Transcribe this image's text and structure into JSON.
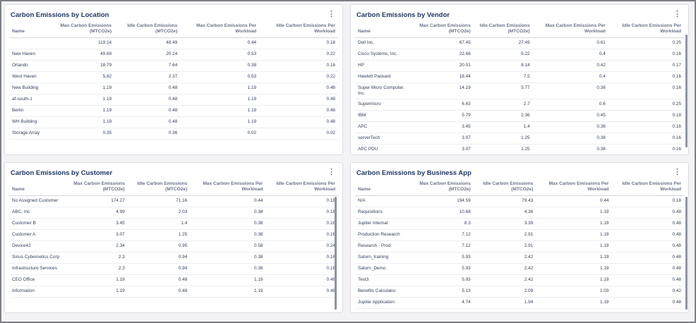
{
  "location": {
    "title": "Carbon Emissions by Location",
    "headers": [
      "Name",
      "Max Carbon Emissions (MTCO2e)",
      "Idle Carbon Emissions (MTCO2e)",
      "Max Carbon Emissions Per Workload",
      "Idle Carbon Emissions Per Workload"
    ],
    "rows": [
      [
        "",
        "119.14",
        "48.49",
        "0.44",
        "0.18"
      ],
      [
        "New Haven",
        "49.69",
        "20.24",
        "0.53",
        "0.22"
      ],
      [
        "Orlando",
        "18.79",
        "7.64",
        "0.38",
        "0.16"
      ],
      [
        "West Haven",
        "5.82",
        "2.37",
        "0.53",
        "0.22"
      ],
      [
        "New Building",
        "1.19",
        "0.48",
        "1.19",
        "0.48"
      ],
      [
        "af-south-1",
        "1.19",
        "0.48",
        "1.19",
        "0.48"
      ],
      [
        "Berlin",
        "1.19",
        "0.48",
        "1.19",
        "0.48"
      ],
      [
        "WH Building",
        "1.19",
        "0.48",
        "1.19",
        "0.48"
      ],
      [
        "Storage Array",
        "0.35",
        "0.36",
        "0.02",
        "0.02"
      ]
    ]
  },
  "vendor": {
    "title": "Carbon Emissions by Vendor",
    "headers": [
      "Name",
      "Max Carbon Emissions (MTCO2e)",
      "Idle Carbon Emissions (MTCO2e)",
      "Max Carbon Emissions Per Workload",
      "Idle Carbon Emissions Per Workload"
    ],
    "rows": [
      [
        "Dell Inc.",
        "67.45",
        "27.49",
        "0.61",
        "0.25"
      ],
      [
        "Cisco Systems, Inc.",
        "22.66",
        "9.22",
        "0.4",
        "0.16"
      ],
      [
        "HP",
        "20.01",
        "8.14",
        "0.42",
        "0.17"
      ],
      [
        "Hewlett Packard",
        "18.44",
        "7.5",
        "0.4",
        "0.16"
      ],
      [
        "Super Micro Computer, Inc.",
        "14.19",
        "5.77",
        "0.38",
        "0.16"
      ],
      [
        "Supermicro",
        "6.63",
        "2.7",
        "0.6",
        "0.25"
      ],
      [
        "IBM",
        "5.79",
        "2.36",
        "0.45",
        "0.18"
      ],
      [
        "APC",
        "3.45",
        "1.4",
        "0.38",
        "0.16"
      ],
      [
        "serverTech",
        "3.07",
        "1.25",
        "0.38",
        "0.16"
      ],
      [
        "APC PDU",
        "3.07",
        "1.25",
        "0.38",
        "0.16"
      ]
    ]
  },
  "customer": {
    "title": "Carbon Emissions by Customer",
    "headers": [
      "Name",
      "Max Carbon Emissions (MTCO2e)",
      "Idle Carbon Emissions (MTCO2e)",
      "Max Carbon Emissions Per Workload",
      "Idle Carbon Emissions Per Workload"
    ],
    "rows": [
      [
        "No Assigned Customer",
        "174.27",
        "71.16",
        "0.44",
        "0.18"
      ],
      [
        "ABC, Inc",
        "4.99",
        "2.03",
        "0.38",
        "0.16"
      ],
      [
        "Customer B",
        "3.45",
        "1.4",
        "0.38",
        "0.16"
      ],
      [
        "Customer A",
        "3.07",
        "1.25",
        "0.38",
        "0.16"
      ],
      [
        "Device42",
        "2.34",
        "0.95",
        "0.58",
        "0.24"
      ],
      [
        "Sirius Cybernetics Corp",
        "2.3",
        "0.94",
        "0.38",
        "0.16"
      ],
      [
        "Infrastructure Services",
        "2.3",
        "0.94",
        "0.38",
        "0.16"
      ],
      [
        "CEO Office",
        "1.19",
        "0.48",
        "1.19",
        "0.48"
      ],
      [
        "Information",
        "1.19",
        "0.48",
        "1.19",
        "0.48"
      ]
    ]
  },
  "business_app": {
    "title": "Carbon Emissions by Business App",
    "headers": [
      "Name",
      "Max Carbon Emissions (MTCO2e)",
      "Idle Carbon Emissions (MTCO2e)",
      "Max Carbon Emissions Per Workload",
      "Idle Carbon Emissions Per Workload"
    ],
    "rows": [
      [
        "N/A",
        "194.59",
        "79.43",
        "0.44",
        "0.18"
      ],
      [
        "Requisitions",
        "10.68",
        "4.36",
        "1.19",
        "0.48"
      ],
      [
        "Jupiter Internal",
        "8.3",
        "3.39",
        "1.19",
        "0.48"
      ],
      [
        "Production Research",
        "7.12",
        "2.91",
        "1.19",
        "0.48"
      ],
      [
        "Research - Prod",
        "7.12",
        "2.91",
        "1.19",
        "0.48"
      ],
      [
        "Saturn_training",
        "5.93",
        "2.42",
        "1.19",
        "0.48"
      ],
      [
        "Saturn_Demo",
        "5.93",
        "2.42",
        "1.19",
        "0.48"
      ],
      [
        "Test3",
        "5.93",
        "2.42",
        "1.19",
        "0.48"
      ],
      [
        "Benefits Calculator",
        "5.13",
        "2.09",
        "1.03",
        "0.42"
      ],
      [
        "Jupiter Application",
        "4.74",
        "1.94",
        "1.19",
        "0.48"
      ]
    ]
  },
  "menu_icon": "vertical-ellipsis",
  "colors": {
    "title": "#1f3763",
    "header": "#6a7389",
    "cell": "#33405a"
  }
}
